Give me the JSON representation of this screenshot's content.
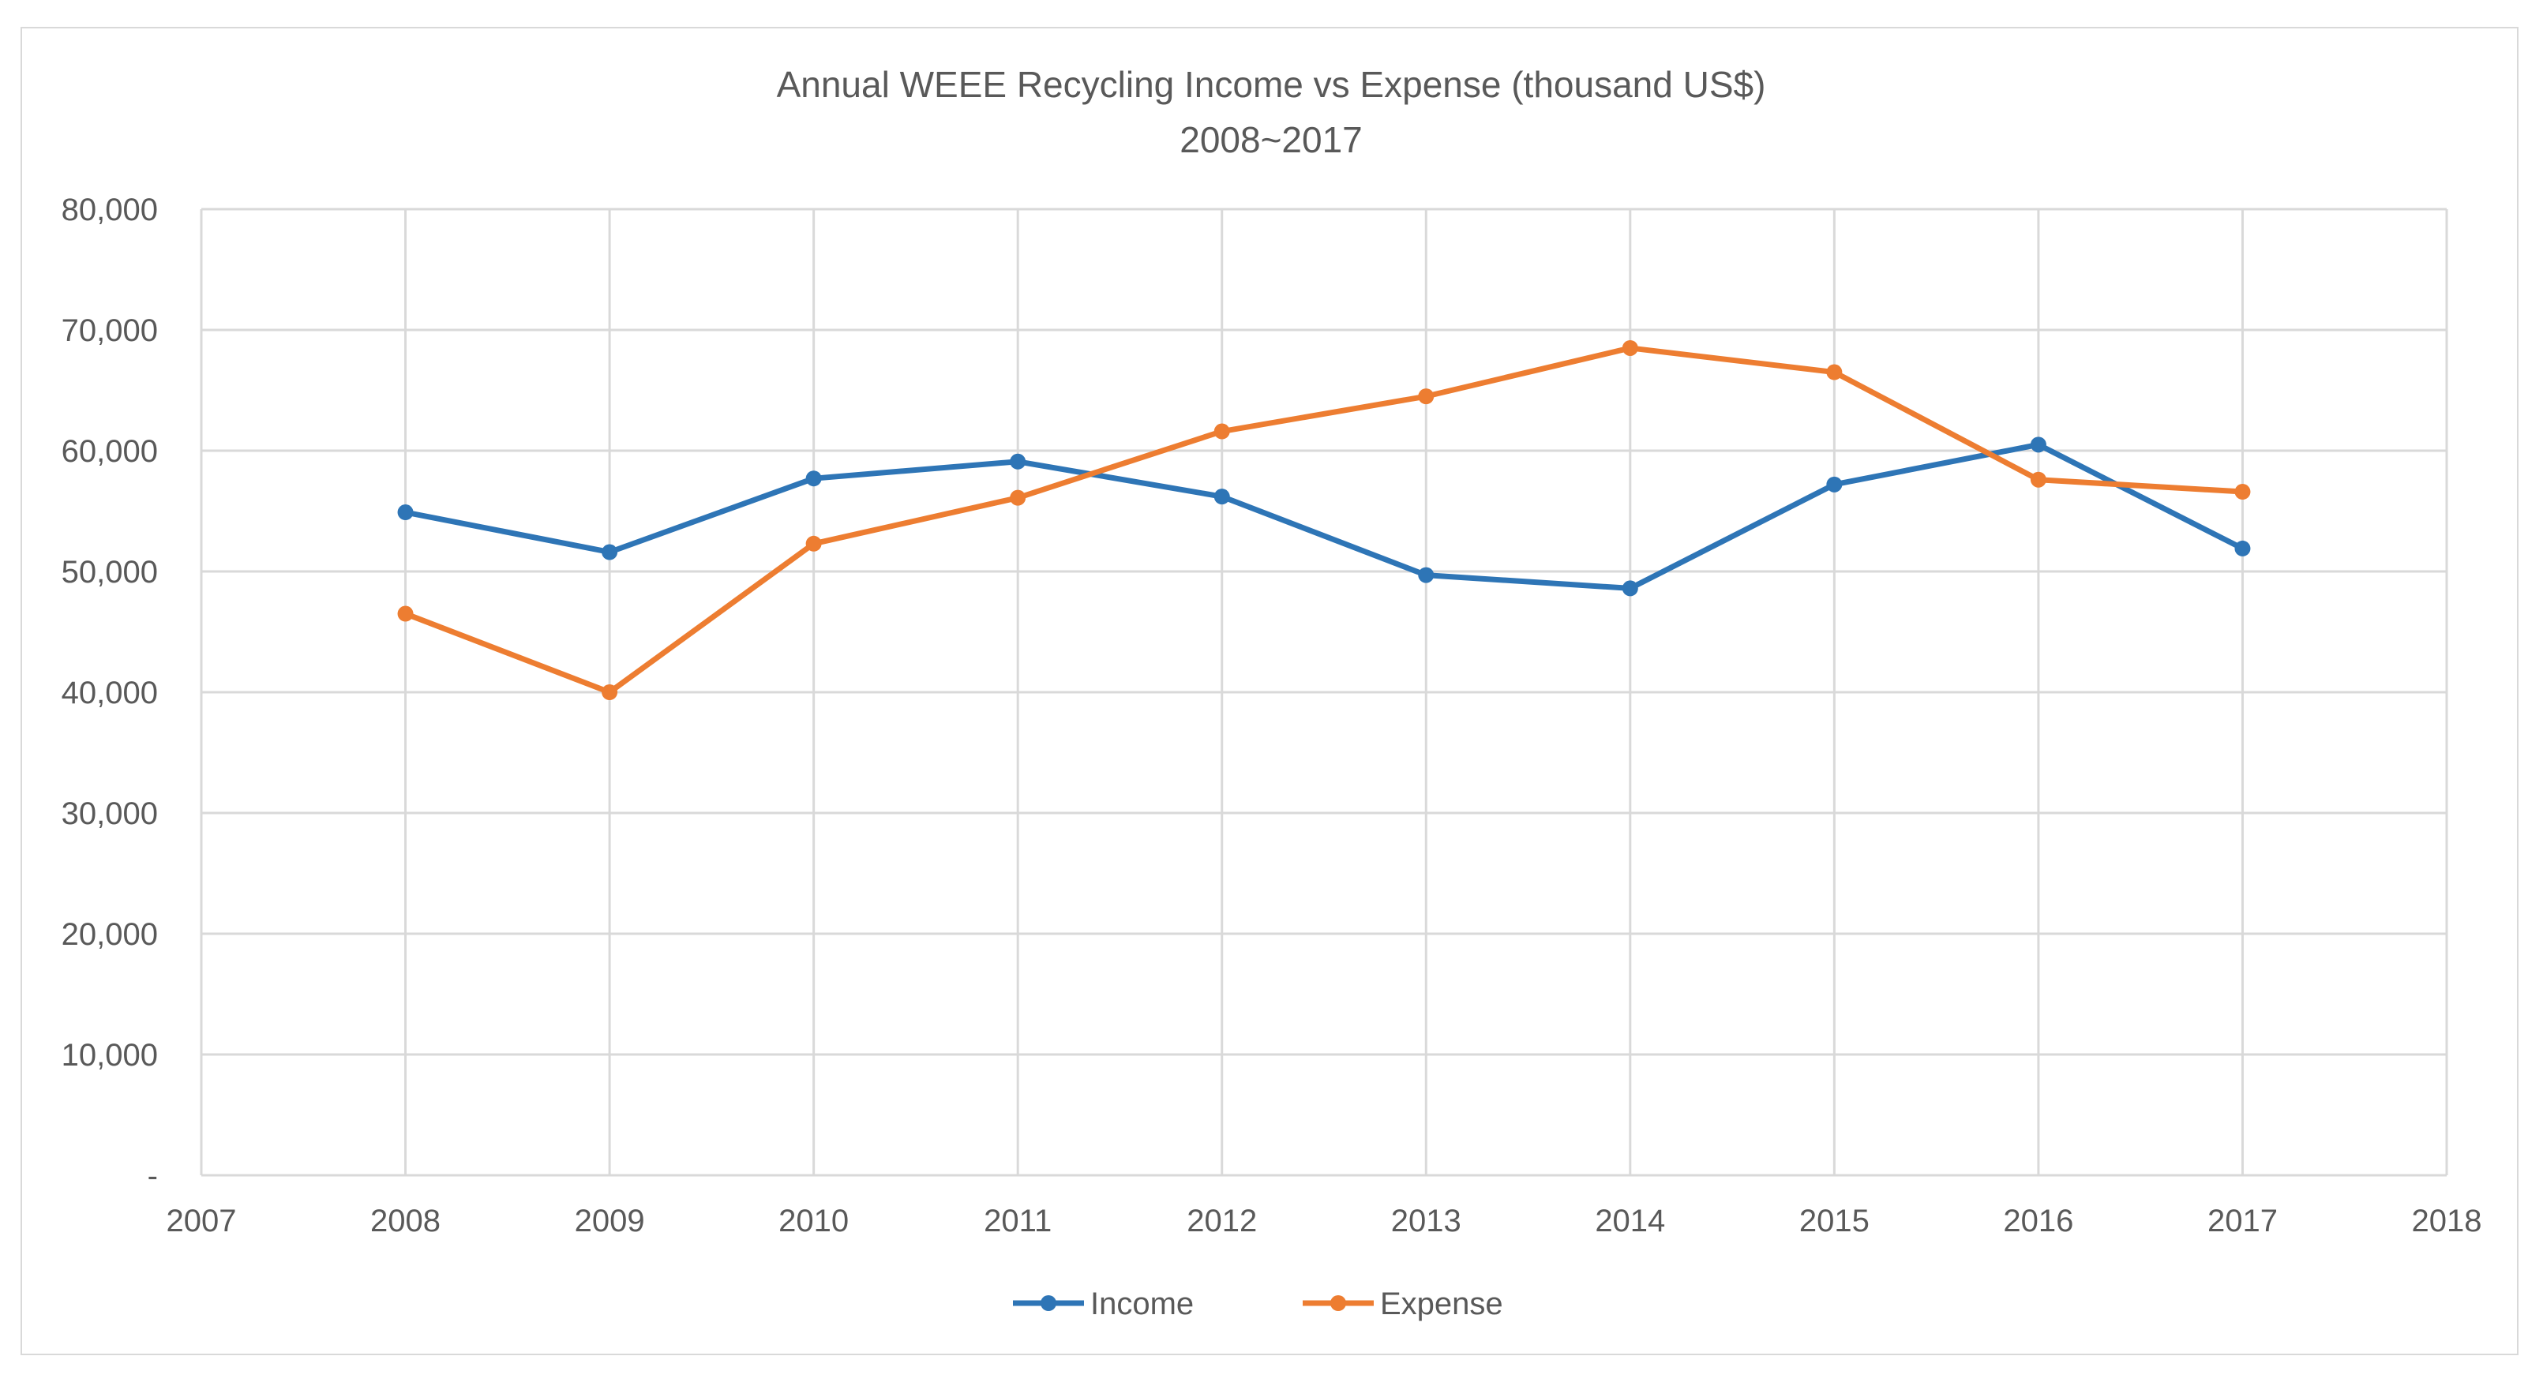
{
  "chart_data": {
    "type": "line",
    "title": "Annual WEEE Recycling Income vs Expense (thousand US$)",
    "subtitle": "2008~2017",
    "xlabel": "",
    "ylabel": "",
    "xlim": [
      2007,
      2018
    ],
    "ylim": [
      0,
      80000
    ],
    "x_ticks": [
      2007,
      2008,
      2009,
      2010,
      2011,
      2012,
      2013,
      2014,
      2015,
      2016,
      2017,
      2018
    ],
    "y_ticks": [
      0,
      10000,
      20000,
      30000,
      40000,
      50000,
      60000,
      70000,
      80000
    ],
    "y_tick_labels": [
      "-",
      "10,000",
      "20,000",
      "30,000",
      "40,000",
      "50,000",
      "60,000",
      "70,000",
      "80,000"
    ],
    "grid": true,
    "legend_position": "bottom",
    "x": [
      2008,
      2009,
      2010,
      2011,
      2012,
      2013,
      2014,
      2015,
      2016,
      2017
    ],
    "series": [
      {
        "name": "Income",
        "color": "#2e75b6",
        "values": [
          54900,
          51600,
          57700,
          59100,
          56200,
          49700,
          48600,
          57200,
          60500,
          51900
        ]
      },
      {
        "name": "Expense",
        "color": "#ed7d31",
        "values": [
          46500,
          40000,
          52300,
          56100,
          61600,
          64500,
          68500,
          66500,
          57600,
          56600
        ]
      }
    ]
  }
}
